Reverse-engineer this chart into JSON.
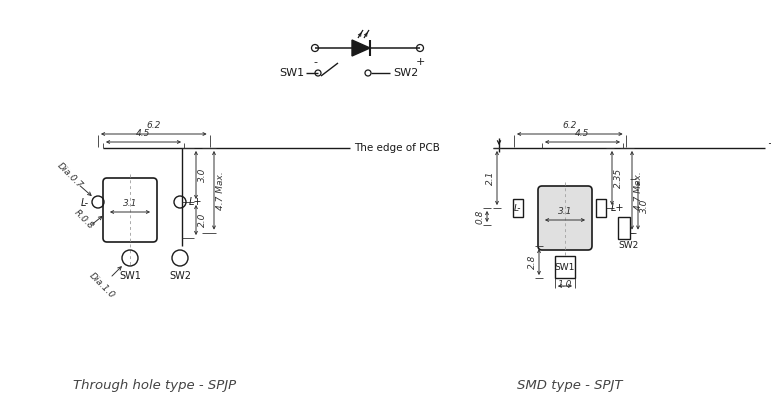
{
  "bg_color": "#ffffff",
  "lc": "#1a1a1a",
  "dc": "#333333",
  "title1": "Through hole type - SPJP",
  "title2": "SMD type - SPJT",
  "edge_pcb": "The edge of PCB"
}
